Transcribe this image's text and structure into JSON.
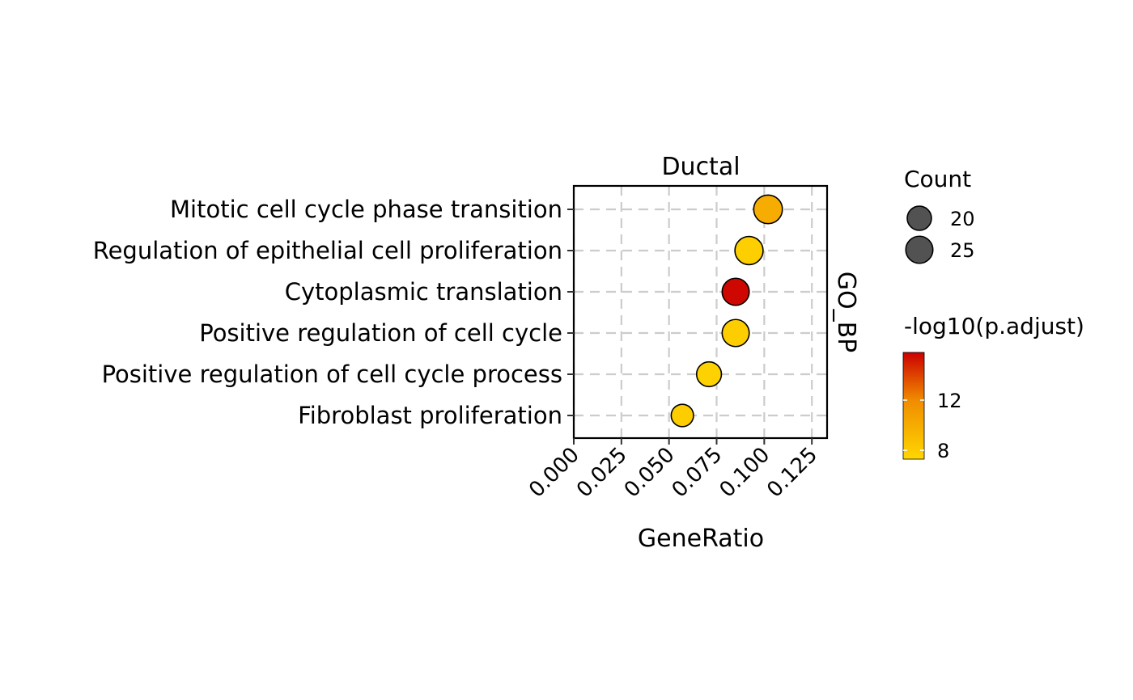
{
  "chart_data": {
    "type": "scatter",
    "facet_label": "Ductal",
    "facet_side_label": "GO_BP",
    "xlabel": "GeneRatio",
    "ylabel": "",
    "xlim": [
      0,
      0.133
    ],
    "x_ticks": [
      "0.000",
      "0.025",
      "0.050",
      "0.075",
      "0.100",
      "0.125"
    ],
    "x_tick_values": [
      0,
      0.025,
      0.05,
      0.075,
      0.1,
      0.125
    ],
    "grid": true,
    "categories": [
      "Mitotic cell cycle phase transition",
      "Regulation of epithelial cell proliferation",
      "Cytoplasmic translation",
      "Positive regulation of cell cycle",
      "Positive regulation of cell cycle process",
      "Fibroblast proliferation"
    ],
    "points": [
      {
        "term": "Mitotic cell cycle phase transition",
        "gene_ratio": 0.102,
        "count": 28,
        "neg_log10_padj": 10.0
      },
      {
        "term": "Regulation of epithelial cell proliferation",
        "gene_ratio": 0.092,
        "count": 27,
        "neg_log10_padj": 7.8
      },
      {
        "term": "Cytoplasmic translation",
        "gene_ratio": 0.085,
        "count": 25,
        "neg_log10_padj": 15.6
      },
      {
        "term": "Positive regulation of cell cycle",
        "gene_ratio": 0.085,
        "count": 25,
        "neg_log10_padj": 7.9
      },
      {
        "term": "Positive regulation of cell cycle process",
        "gene_ratio": 0.071,
        "count": 21,
        "neg_log10_padj": 7.6
      },
      {
        "term": "Fibroblast proliferation",
        "gene_ratio": 0.057,
        "count": 17,
        "neg_log10_padj": 7.9
      }
    ],
    "size_legend": {
      "title": "Count",
      "entries": [
        {
          "label": "20",
          "value": 20
        },
        {
          "label": "25",
          "value": 25
        }
      ]
    },
    "color_legend": {
      "title": "-log10(p.adjust)",
      "range": [
        7.3,
        15.8
      ],
      "ticks": [
        {
          "label": "12",
          "value": 12
        },
        {
          "label": "8",
          "value": 8
        }
      ],
      "low_color": "#FFD700",
      "mid_color": "#F08C00",
      "high_color": "#CC0000"
    },
    "legend_position": "right"
  }
}
